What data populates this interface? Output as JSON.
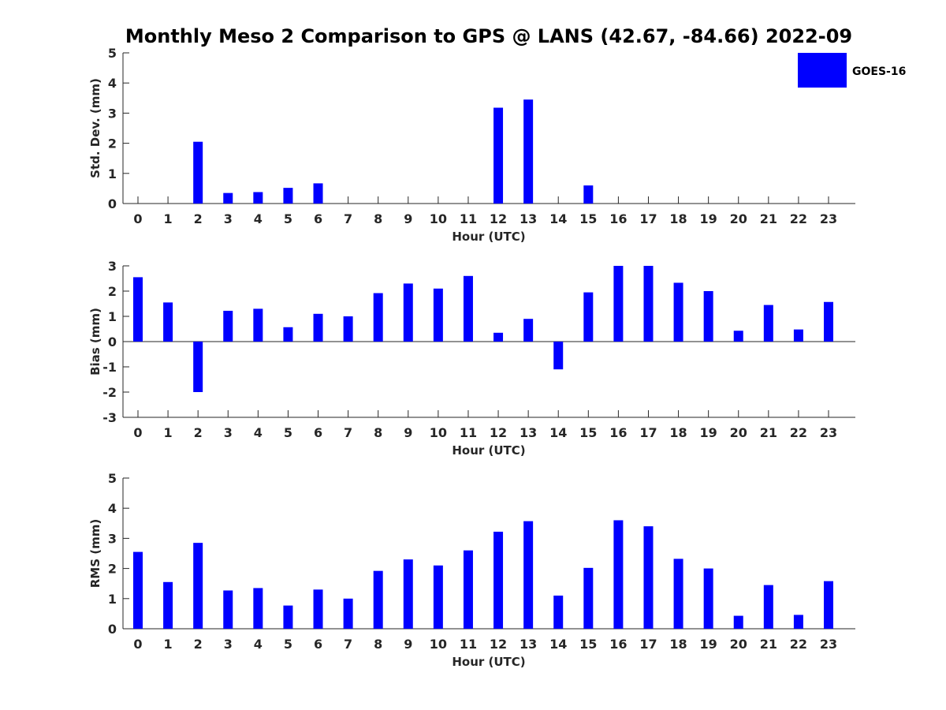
{
  "title": "Monthly Meso 2 Comparison to GPS @ LANS (42.67, -84.66) 2022-09",
  "legend": {
    "label": "GOES-16",
    "color": "#0000FF"
  },
  "chart_data": [
    {
      "type": "bar",
      "xlabel": "Hour (UTC)",
      "ylabel": "Std. Dev. (mm)",
      "ylim": [
        0,
        5
      ],
      "yticks": [
        0,
        1,
        2,
        3,
        4,
        5
      ],
      "categories": [
        "0",
        "1",
        "2",
        "3",
        "4",
        "5",
        "6",
        "7",
        "8",
        "9",
        "10",
        "11",
        "12",
        "13",
        "14",
        "15",
        "16",
        "17",
        "18",
        "19",
        "20",
        "21",
        "22",
        "23"
      ],
      "series": [
        {
          "name": "GOES-16",
          "values": [
            0,
            0,
            2.05,
            0.35,
            0.38,
            0.52,
            0.67,
            0,
            0,
            0,
            0,
            0,
            3.18,
            3.45,
            0,
            0.6,
            0,
            0,
            0,
            0,
            0,
            0,
            0,
            0
          ]
        }
      ]
    },
    {
      "type": "bar",
      "xlabel": "Hour (UTC)",
      "ylabel": "Bias (mm)",
      "ylim": [
        -3,
        3
      ],
      "yticks": [
        -3,
        -2,
        -1,
        0,
        1,
        2,
        3
      ],
      "categories": [
        "0",
        "1",
        "2",
        "3",
        "4",
        "5",
        "6",
        "7",
        "8",
        "9",
        "10",
        "11",
        "12",
        "13",
        "14",
        "15",
        "16",
        "17",
        "18",
        "19",
        "20",
        "21",
        "22",
        "23"
      ],
      "series": [
        {
          "name": "GOES-16",
          "values": [
            2.55,
            1.55,
            -2.0,
            1.22,
            1.3,
            0.57,
            1.1,
            1.0,
            1.92,
            2.3,
            2.1,
            2.6,
            0.35,
            0.9,
            -1.1,
            1.95,
            3.0,
            3.0,
            2.33,
            2.0,
            0.43,
            1.45,
            0.48,
            1.57
          ]
        }
      ]
    },
    {
      "type": "bar",
      "xlabel": "Hour (UTC)",
      "ylabel": "RMS (mm)",
      "ylim": [
        0,
        5
      ],
      "yticks": [
        0,
        1,
        2,
        3,
        4,
        5
      ],
      "categories": [
        "0",
        "1",
        "2",
        "3",
        "4",
        "5",
        "6",
        "7",
        "8",
        "9",
        "10",
        "11",
        "12",
        "13",
        "14",
        "15",
        "16",
        "17",
        "18",
        "19",
        "20",
        "21",
        "22",
        "23"
      ],
      "series": [
        {
          "name": "GOES-16",
          "values": [
            2.55,
            1.55,
            2.85,
            1.27,
            1.35,
            0.77,
            1.3,
            1.0,
            1.92,
            2.3,
            2.1,
            2.6,
            3.22,
            3.57,
            1.1,
            2.02,
            3.6,
            3.4,
            2.32,
            2.0,
            0.43,
            1.45,
            0.46,
            1.58
          ]
        }
      ]
    }
  ]
}
